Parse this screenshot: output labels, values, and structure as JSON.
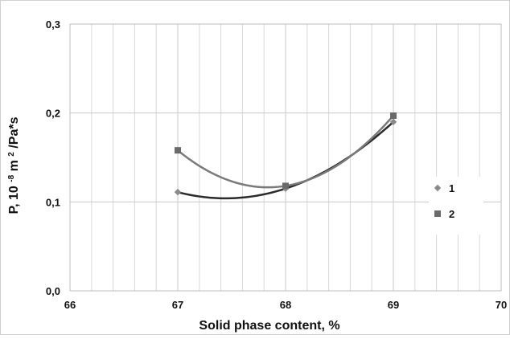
{
  "chart_data": {
    "type": "scatter",
    "title": "",
    "xlabel": "Solid phase content, %",
    "ylabel_main": "P, 10",
    "ylabel_sup1": "-8",
    "ylabel_mid": "m",
    "ylabel_sup2": "2",
    "ylabel_tail": "/Pa*s",
    "xlim": [
      66,
      70
    ],
    "ylim": [
      0.0,
      0.3
    ],
    "x_ticks": [
      66,
      67,
      68,
      69,
      70
    ],
    "y_ticks": [
      0.0,
      0.1,
      0.2,
      0.3
    ],
    "x_tick_labels": [
      "66",
      "67",
      "68",
      "69",
      "70"
    ],
    "y_tick_labels": [
      "0,0",
      "0,1",
      "0,2",
      "0,3"
    ],
    "grid": true,
    "legend_position": "right",
    "series": [
      {
        "name": "1",
        "marker": "diamond",
        "marker_color": "#8a8a8a",
        "line_color": "#2b2b2b",
        "trendline": "polynomial-2",
        "x": [
          67,
          68,
          69
        ],
        "y": [
          0.111,
          0.115,
          0.19
        ]
      },
      {
        "name": "2",
        "marker": "square",
        "marker_color": "#6a6a6a",
        "line_color": "#7a7a7a",
        "trendline": "polynomial-2",
        "x": [
          67,
          68,
          69
        ],
        "y": [
          0.158,
          0.118,
          0.197
        ]
      }
    ]
  }
}
